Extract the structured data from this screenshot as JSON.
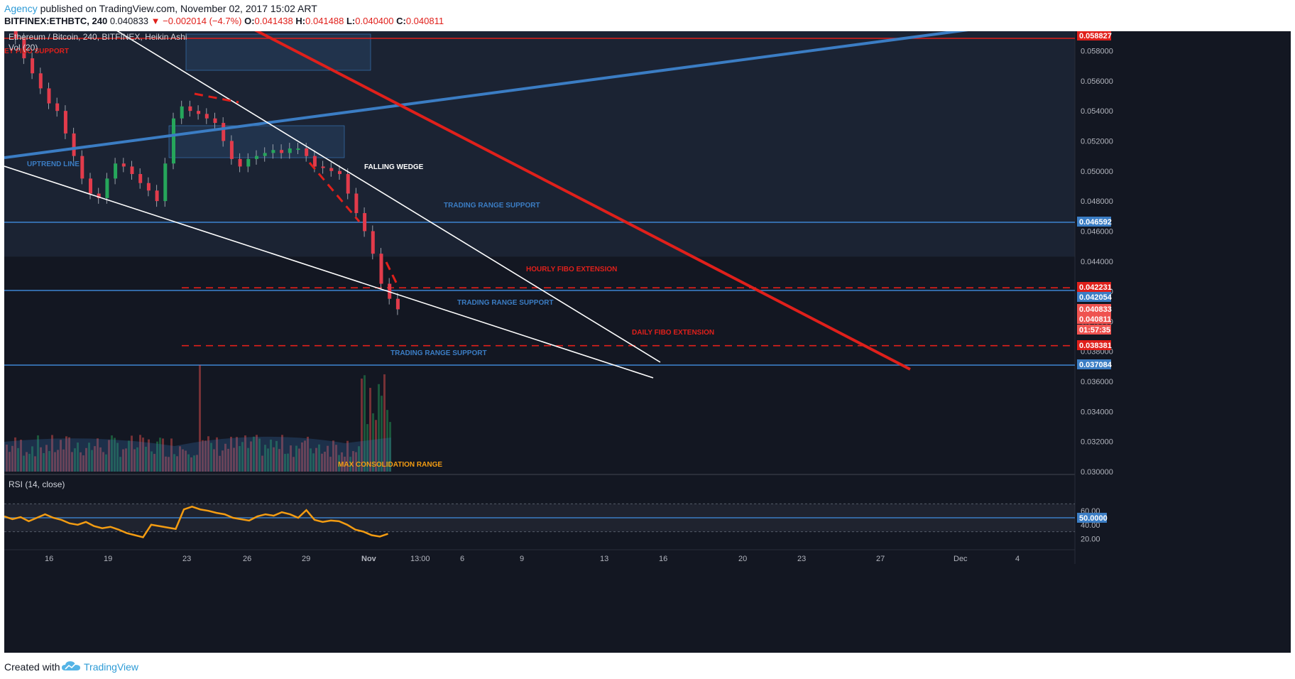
{
  "header": {
    "author": "Agency",
    "published_text": "published on TradingView.com, November 02, 2017 15:02 ART",
    "symbol": "BITFINEX:ETHBTC, 240",
    "price": "0.040833",
    "change": "▼ −0.002014 (−4.7%)",
    "ohlc": [
      {
        "k": "O:",
        "v": "0.041438"
      },
      {
        "k": "H:",
        "v": "0.041488"
      },
      {
        "k": "L:",
        "v": "0.040400"
      },
      {
        "k": "C:",
        "v": "0.040811"
      }
    ]
  },
  "chart_data": {
    "type": "candlestick",
    "title": "Ethereum / Bitcoin, 240, BITFINEX, Heikin Ashi",
    "indicator_label": "Vol (20)",
    "rsi_label": "RSI (14, close)",
    "y_ticks": [
      "0.058000",
      "0.056000",
      "0.054000",
      "0.052000",
      "0.050000",
      "0.048000",
      "0.046000",
      "0.044000",
      "0.042000",
      "0.040000",
      "0.038000",
      "0.036000",
      "0.034000",
      "0.032000",
      "0.030000"
    ],
    "y_range": [
      0.03,
      0.0593
    ],
    "rsi_ticks": [
      "60.00",
      "40.00",
      "20.00"
    ],
    "rsi_highlight": "50.0000",
    "x_ticks": [
      "16",
      "19",
      "23",
      "26",
      "29",
      "Nov",
      "13:00",
      "6",
      "9",
      "13",
      "16",
      "20",
      "23",
      "27",
      "Dec",
      "4"
    ],
    "price_badges": [
      {
        "label": "0.058827",
        "value": 0.058827,
        "color": "#e0201b"
      },
      {
        "label": "0.046592",
        "value": 0.046592,
        "color": "#3b7dc4"
      },
      {
        "label": "0.042231",
        "value": 0.042231,
        "color": "#e0201b"
      },
      {
        "label": "0.042054",
        "value": 0.042054,
        "color": "#3b7dc4"
      },
      {
        "label": "0.040833",
        "value": 0.040833,
        "color": "#ef5350"
      },
      {
        "label": "0.040811",
        "value": 0.040811,
        "color": "#ef5350"
      },
      {
        "label": "01:57:35",
        "value": 0.04035,
        "color": "#ef5350"
      },
      {
        "label": "0.038381",
        "value": 0.038381,
        "color": "#e0201b"
      },
      {
        "label": "0.037084",
        "value": 0.037084,
        "color": "#3b7dc4"
      }
    ],
    "annotations": [
      {
        "text": "UPTREND LINE",
        "color": "#3b7dc4"
      },
      {
        "text": "FALLING WEDGE",
        "color": "#ffffff"
      },
      {
        "text": "TRADING RANGE SUPPORT",
        "color": "#3b7dc4"
      },
      {
        "text": "HOURLY FIBO EXTENSION",
        "color": "#e0201b"
      },
      {
        "text": "TRADING RANGE SUPPORT",
        "color": "#3b7dc4"
      },
      {
        "text": "DAILY FIBO EXTENSION",
        "color": "#e0201b"
      },
      {
        "text": "TRADING RANGE SUPPORT",
        "color": "#3b7dc4"
      },
      {
        "text": "MAX CONSOLIDATION RANGE",
        "color": "#f39c12"
      },
      {
        "text": "EY FIBO SUPPORT",
        "color": "#e0201b"
      }
    ],
    "close_path": [
      [
        0.0,
        0.0595
      ],
      [
        0.03,
        0.0588
      ],
      [
        0.06,
        0.0575
      ],
      [
        0.09,
        0.0565
      ],
      [
        0.12,
        0.0555
      ],
      [
        0.15,
        0.0545
      ],
      [
        0.18,
        0.054
      ],
      [
        0.21,
        0.0525
      ],
      [
        0.24,
        0.051
      ],
      [
        0.27,
        0.0495
      ],
      [
        0.3,
        0.0485
      ],
      [
        0.33,
        0.0482
      ],
      [
        0.36,
        0.0495
      ],
      [
        0.39,
        0.0505
      ],
      [
        0.42,
        0.0503
      ],
      [
        0.45,
        0.0498
      ],
      [
        0.48,
        0.0492
      ],
      [
        0.51,
        0.0487
      ],
      [
        0.54,
        0.048
      ],
      [
        0.57,
        0.0505
      ],
      [
        0.6,
        0.0535
      ],
      [
        0.63,
        0.0543
      ],
      [
        0.66,
        0.054
      ],
      [
        0.69,
        0.0538
      ],
      [
        0.72,
        0.0535
      ],
      [
        0.75,
        0.0532
      ],
      [
        0.78,
        0.052
      ],
      [
        0.81,
        0.0508
      ],
      [
        0.84,
        0.0503
      ],
      [
        0.87,
        0.0508
      ],
      [
        0.9,
        0.051
      ],
      [
        0.93,
        0.0512
      ],
      [
        0.96,
        0.0514
      ],
      [
        0.99,
        0.0512
      ],
      [
        1.02,
        0.0515
      ],
      [
        1.05,
        0.0515
      ],
      [
        1.08,
        0.051
      ],
      [
        1.11,
        0.0503
      ],
      [
        1.14,
        0.0502
      ],
      [
        1.17,
        0.05
      ],
      [
        1.2,
        0.0498
      ],
      [
        1.23,
        0.0485
      ],
      [
        1.26,
        0.0472
      ],
      [
        1.29,
        0.046
      ],
      [
        1.32,
        0.0445
      ],
      [
        1.35,
        0.0425
      ],
      [
        1.38,
        0.0415
      ],
      [
        1.41,
        0.0408
      ]
    ]
  },
  "footer": {
    "created_with": "Created with",
    "brand": "TradingView"
  }
}
